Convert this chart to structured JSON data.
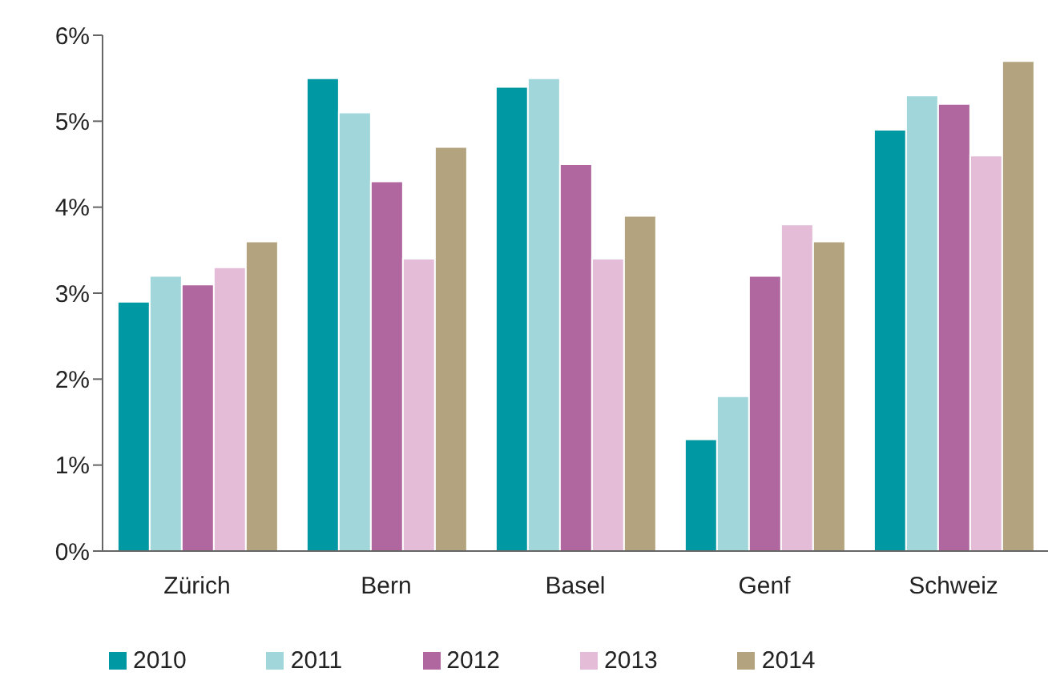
{
  "chart_data": {
    "type": "bar",
    "categories": [
      "Zürich",
      "Bern",
      "Basel",
      "Genf",
      "Schweiz"
    ],
    "series": [
      {
        "name": "2010",
        "color": "#0098a3",
        "values": [
          2.9,
          5.5,
          5.4,
          1.3,
          4.9
        ]
      },
      {
        "name": "2011",
        "color": "#a1d6da",
        "values": [
          3.2,
          5.1,
          5.5,
          1.8,
          5.3
        ]
      },
      {
        "name": "2012",
        "color": "#b0669f",
        "values": [
          3.1,
          4.3,
          4.5,
          3.2,
          5.2
        ]
      },
      {
        "name": "2013",
        "color": "#e5bcd8",
        "values": [
          3.3,
          3.4,
          3.4,
          3.8,
          4.6
        ]
      },
      {
        "name": "2014",
        "color": "#b3a47f",
        "values": [
          3.6,
          4.7,
          3.9,
          3.6,
          5.7
        ]
      }
    ],
    "ylim": [
      0,
      6
    ],
    "yticks": [
      {
        "value": 0,
        "label": "0%"
      },
      {
        "value": 1,
        "label": "1%"
      },
      {
        "value": 2,
        "label": "2%"
      },
      {
        "value": 3,
        "label": "3%"
      },
      {
        "value": 4,
        "label": "4%"
      },
      {
        "value": 5,
        "label": "5%"
      },
      {
        "value": 6,
        "label": "6%"
      }
    ],
    "grid": false,
    "legend": "bottom"
  }
}
